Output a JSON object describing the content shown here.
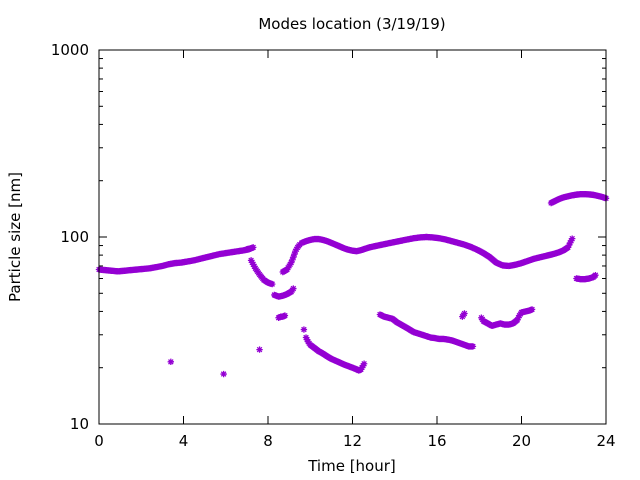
{
  "chart_data": {
    "type": "scatter",
    "title": "Modes location (3/19/19)",
    "xlabel": "Time [hour]",
    "ylabel": "Particle size [nm]",
    "xlim": [
      0,
      24
    ],
    "ylim": [
      10,
      1000
    ],
    "yscale": "log",
    "x_ticks": [
      0,
      4,
      8,
      12,
      16,
      20,
      24
    ],
    "x_tick_labels": [
      "0",
      "4",
      "8",
      "12",
      "16",
      "20",
      "24"
    ],
    "y_ticks": [
      10,
      100,
      1000
    ],
    "y_tick_labels": [
      "10",
      "100",
      "1000"
    ],
    "grid": false,
    "legend": "none",
    "marker_color": "#9400d3",
    "marker": "star",
    "series": [
      {
        "segments": [
          [
            [
              0,
              67
            ],
            [
              0.3,
              66.5
            ],
            [
              0.6,
              66
            ],
            [
              0.9,
              65.5
            ],
            [
              1.2,
              66
            ],
            [
              1.5,
              66.5
            ],
            [
              1.8,
              67
            ],
            [
              2.1,
              67.5
            ],
            [
              2.4,
              68
            ],
            [
              2.7,
              69
            ],
            [
              3.0,
              70
            ],
            [
              3.3,
              71.5
            ],
            [
              3.6,
              72.5
            ],
            [
              3.9,
              73
            ],
            [
              4.2,
              74
            ],
            [
              4.5,
              75
            ],
            [
              4.8,
              76.5
            ],
            [
              5.1,
              78
            ],
            [
              5.4,
              79.5
            ],
            [
              5.7,
              81
            ],
            [
              6.0,
              82
            ],
            [
              6.3,
              83
            ],
            [
              6.6,
              84
            ],
            [
              6.9,
              85
            ],
            [
              7.1,
              86
            ],
            [
              7.3,
              88
            ]
          ],
          [
            [
              7.2,
              75
            ],
            [
              7.4,
              68
            ],
            [
              7.6,
              63
            ],
            [
              7.8,
              59
            ],
            [
              8.0,
              57
            ],
            [
              8.2,
              56
            ]
          ],
          [
            [
              8.7,
              65
            ],
            [
              8.8,
              66
            ],
            [
              8.9,
              67
            ],
            [
              9.0,
              70
            ],
            [
              9.1,
              73
            ],
            [
              9.2,
              78
            ],
            [
              9.3,
              84
            ],
            [
              9.4,
              88
            ],
            [
              9.5,
              91
            ]
          ],
          [
            [
              9.6,
              93
            ],
            [
              9.8,
              95
            ],
            [
              10.0,
              96.5
            ],
            [
              10.2,
              97.5
            ],
            [
              10.4,
              97.5
            ],
            [
              10.6,
              96.5
            ],
            [
              10.8,
              95
            ],
            [
              11.0,
              93
            ],
            [
              11.2,
              91
            ],
            [
              11.4,
              89
            ],
            [
              11.6,
              87
            ],
            [
              11.8,
              85.5
            ],
            [
              12.0,
              84.5
            ],
            [
              12.2,
              84
            ],
            [
              12.4,
              85
            ],
            [
              12.6,
              86.5
            ],
            [
              12.8,
              88
            ],
            [
              13.0,
              89
            ],
            [
              13.2,
              90
            ],
            [
              13.4,
              91
            ],
            [
              13.6,
              92
            ],
            [
              13.8,
              93
            ],
            [
              14.0,
              94
            ],
            [
              14.3,
              95.5
            ],
            [
              14.6,
              97
            ],
            [
              14.9,
              98.5
            ],
            [
              15.2,
              99.5
            ],
            [
              15.5,
              100
            ],
            [
              15.8,
              99.5
            ],
            [
              16.1,
              98.5
            ],
            [
              16.4,
              97
            ],
            [
              16.7,
              95
            ],
            [
              17.0,
              93
            ],
            [
              17.3,
              91
            ],
            [
              17.6,
              88.5
            ],
            [
              17.9,
              85.5
            ],
            [
              18.2,
              82
            ],
            [
              18.5,
              78
            ],
            [
              18.8,
              73
            ],
            [
              19.1,
              70.5
            ],
            [
              19.4,
              70
            ],
            [
              19.7,
              71
            ],
            [
              20.0,
              72.5
            ],
            [
              20.3,
              74.5
            ],
            [
              20.6,
              76.5
            ],
            [
              20.9,
              78
            ],
            [
              21.2,
              79.5
            ],
            [
              21.5,
              81
            ],
            [
              21.8,
              83
            ],
            [
              22.0,
              85
            ],
            [
              22.2,
              88
            ],
            [
              22.3,
              93
            ],
            [
              22.4,
              98
            ]
          ],
          [
            [
              21.4,
              152
            ],
            [
              21.6,
              156
            ],
            [
              21.8,
              160
            ],
            [
              22.0,
              163
            ],
            [
              22.2,
              165
            ],
            [
              22.4,
              167
            ],
            [
              22.6,
              168.5
            ],
            [
              22.8,
              169.5
            ],
            [
              23.0,
              169.5
            ],
            [
              23.2,
              169
            ],
            [
              23.4,
              168
            ],
            [
              23.6,
              166
            ],
            [
              23.8,
              164
            ],
            [
              24.0,
              161
            ]
          ],
          [
            [
              22.6,
              60
            ],
            [
              22.8,
              59.5
            ],
            [
              23.0,
              59.5
            ],
            [
              23.2,
              60
            ],
            [
              23.4,
              61
            ],
            [
              23.5,
              62.5
            ]
          ],
          [
            [
              7.0,
              86
            ],
            [
              7.2,
              87
            ]
          ],
          [
            [
              8.3,
              49
            ],
            [
              8.5,
              48
            ],
            [
              8.7,
              48.5
            ],
            [
              8.9,
              49.5
            ],
            [
              9.1,
              51
            ],
            [
              9.2,
              53
            ]
          ],
          [
            [
              8.5,
              37
            ],
            [
              8.6,
              37.5
            ],
            [
              8.7,
              37.5
            ],
            [
              8.8,
              38
            ]
          ],
          [
            [
              9.7,
              32
            ]
          ],
          [
            [
              9.8,
              29
            ],
            [
              9.9,
              27.5
            ],
            [
              10.0,
              26.5
            ],
            [
              10.2,
              25.5
            ],
            [
              10.4,
              24.5
            ],
            [
              10.6,
              23.8
            ],
            [
              10.8,
              23
            ],
            [
              11.0,
              22.3
            ],
            [
              11.2,
              21.8
            ],
            [
              11.4,
              21.3
            ],
            [
              11.6,
              20.8
            ],
            [
              11.8,
              20.4
            ],
            [
              12.0,
              20
            ],
            [
              12.2,
              19.6
            ],
            [
              12.3,
              19.3
            ],
            [
              12.4,
              19.6
            ],
            [
              12.5,
              20.5
            ],
            [
              12.55,
              21
            ]
          ],
          [
            [
              13.3,
              38.5
            ],
            [
              13.5,
              37.5
            ],
            [
              13.7,
              37
            ],
            [
              13.9,
              36.5
            ],
            [
              14.1,
              35
            ],
            [
              14.3,
              34
            ],
            [
              14.5,
              33
            ],
            [
              14.7,
              32
            ],
            [
              14.9,
              31
            ],
            [
              15.1,
              30.5
            ],
            [
              15.3,
              30
            ],
            [
              15.5,
              29.5
            ],
            [
              15.7,
              29
            ],
            [
              15.9,
              28.8
            ],
            [
              16.1,
              28.5
            ],
            [
              16.3,
              28.5
            ],
            [
              16.5,
              28.3
            ],
            [
              16.7,
              28
            ],
            [
              16.9,
              27.5
            ],
            [
              17.1,
              27
            ],
            [
              17.3,
              26.5
            ],
            [
              17.5,
              26
            ],
            [
              17.7,
              26
            ]
          ],
          [
            [
              17.2,
              37.5
            ],
            [
              17.3,
              39
            ]
          ],
          [
            [
              18.1,
              37
            ],
            [
              18.2,
              35.5
            ],
            [
              18.4,
              34.5
            ],
            [
              18.6,
              33.5
            ],
            [
              18.8,
              34
            ],
            [
              19.0,
              34.5
            ],
            [
              19.2,
              34
            ],
            [
              19.4,
              34
            ],
            [
              19.6,
              34.5
            ],
            [
              19.8,
              36
            ],
            [
              19.9,
              38
            ],
            [
              20.0,
              39.5
            ],
            [
              20.2,
              40
            ],
            [
              20.4,
              40.5
            ],
            [
              20.5,
              41
            ]
          ],
          [
            [
              3.4,
              21.5
            ]
          ],
          [
            [
              5.9,
              18.5
            ]
          ],
          [
            [
              7.6,
              25
            ]
          ]
        ]
      }
    ]
  }
}
